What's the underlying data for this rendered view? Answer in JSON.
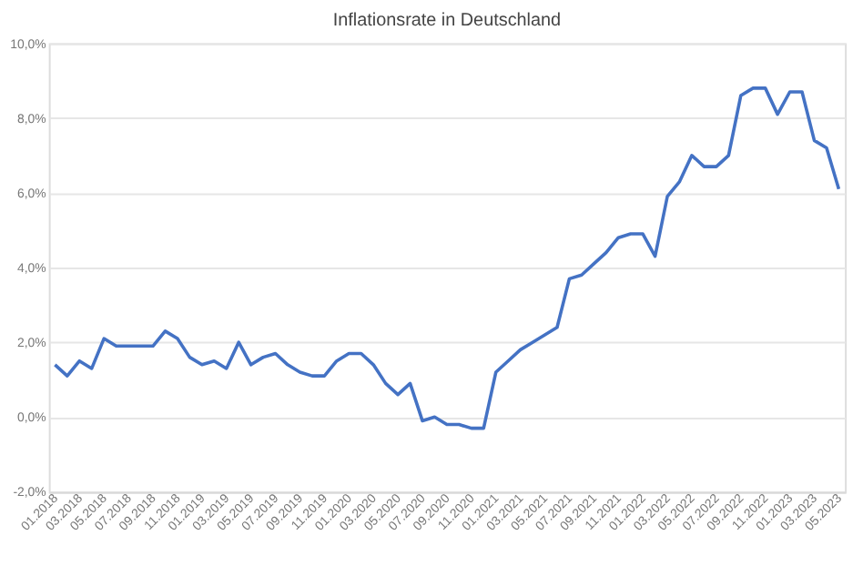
{
  "chart_data": {
    "type": "line",
    "title": "Inflationsrate in Deutschland",
    "categories": [
      "01.2018",
      null,
      "03.2018",
      null,
      "05.2018",
      null,
      "07.2018",
      null,
      "09.2018",
      null,
      "11.2018",
      null,
      "01.2019",
      null,
      "03.2019",
      null,
      "05.2019",
      null,
      "07.2019",
      null,
      "09.2019",
      null,
      "11.2019",
      null,
      "01.2020",
      null,
      "03.2020",
      null,
      "05.2020",
      null,
      "07.2020",
      null,
      "09.2020",
      null,
      "11.2020",
      null,
      "01.2021",
      null,
      "03.2021",
      null,
      "05.2021",
      null,
      "07.2021",
      null,
      "09.2021",
      null,
      "11.2021",
      null,
      "01.2022",
      null,
      "03.2022",
      null,
      "05.2022",
      null,
      "07.2022",
      null,
      "09.2022",
      null,
      "11.2022",
      null,
      "01.2023",
      null,
      "03.2023",
      null,
      "05.2023"
    ],
    "series": [
      {
        "color": "#4472c4",
        "values": [
          1.4,
          1.1,
          1.5,
          1.3,
          2.1,
          1.9,
          1.9,
          1.9,
          1.9,
          2.3,
          2.1,
          1.6,
          1.4,
          1.5,
          1.3,
          2.0,
          1.4,
          1.6,
          1.7,
          1.4,
          1.2,
          1.1,
          1.1,
          1.5,
          1.7,
          1.7,
          1.4,
          0.9,
          0.6,
          0.9,
          -0.1,
          0.0,
          -0.2,
          -0.2,
          -0.3,
          -0.3,
          1.2,
          1.5,
          1.8,
          2.0,
          2.2,
          2.4,
          3.7,
          3.8,
          4.1,
          4.4,
          4.8,
          4.9,
          4.9,
          4.3,
          5.9,
          6.3,
          7.0,
          6.7,
          6.7,
          7.0,
          8.6,
          8.8,
          8.8,
          8.1,
          8.7,
          8.7,
          7.4,
          7.2,
          6.1
        ]
      }
    ],
    "ylim": [
      -2,
      10
    ],
    "yticks": [
      {
        "value": -2,
        "label": "-2,0%"
      },
      {
        "value": 0,
        "label": "0,0%"
      },
      {
        "value": 2,
        "label": "2,0%"
      },
      {
        "value": 4,
        "label": "4,0%"
      },
      {
        "value": 6,
        "label": "6,0%"
      },
      {
        "value": 8,
        "label": "8,0%"
      },
      {
        "value": 10,
        "label": "10,0%"
      }
    ],
    "grid": "y",
    "marker": "none",
    "line_style": "solid"
  }
}
